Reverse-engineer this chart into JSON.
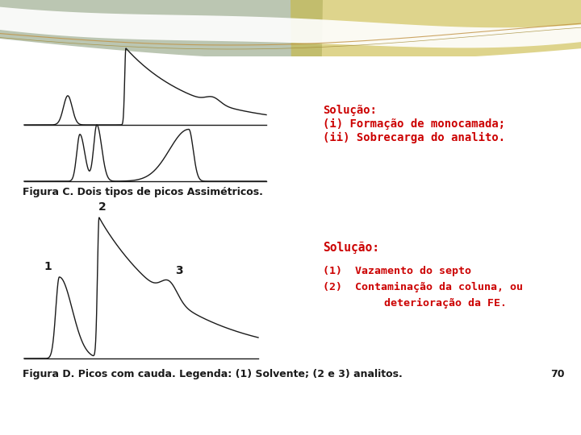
{
  "bg_color": "#ffffff",
  "text_color_red": "#cc0000",
  "text_color_dark": "#1a1a1a",
  "fig_c_caption": "Figura C. Dois tipos de picos Assimétricos.",
  "fig_d_caption": "Figura D. Picos com cauda. Legenda: (1) Solvente; (2 e 3) analitos.",
  "solucao1_lines": [
    "Solução:",
    "(i) Formação de monocamada;",
    "(ii) Sobrecarga do analito."
  ],
  "solucao2_line0": "Solução:",
  "solucao2_lines": [
    "(1)  Vazamento do septo",
    "(2)  Contaminação da coluna, ou",
    "       deterioração da FE."
  ],
  "page_number": "70",
  "wave_sage": "#8fa080",
  "wave_gold": "#c8b840",
  "wave_line1": "#c09040",
  "wave_line2": "#a08830"
}
